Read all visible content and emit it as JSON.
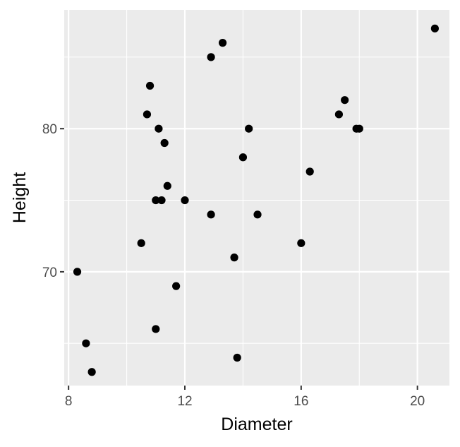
{
  "chart_data": {
    "type": "scatter",
    "xlabel": "Diameter",
    "ylabel": "Height",
    "xlim": [
      7.85,
      21.1
    ],
    "ylim": [
      62.05,
      88.3
    ],
    "x_ticks": [
      8,
      12,
      16,
      20
    ],
    "x_tick_labels": [
      "8",
      "12",
      "16",
      "20"
    ],
    "x_minor": [
      10,
      14,
      18
    ],
    "y_ticks": [
      70,
      80
    ],
    "y_tick_labels": [
      "70",
      "80"
    ],
    "y_minor": [
      65,
      75,
      85
    ],
    "grid": true,
    "background": "#ebebeb",
    "gridline_color": "#ffffff",
    "point_color": "#000000",
    "points": [
      {
        "x": 8.3,
        "y": 70
      },
      {
        "x": 8.6,
        "y": 65
      },
      {
        "x": 8.8,
        "y": 63
      },
      {
        "x": 10.5,
        "y": 72
      },
      {
        "x": 10.7,
        "y": 81
      },
      {
        "x": 10.8,
        "y": 83
      },
      {
        "x": 11.0,
        "y": 66
      },
      {
        "x": 11.0,
        "y": 75
      },
      {
        "x": 11.1,
        "y": 80
      },
      {
        "x": 11.2,
        "y": 75
      },
      {
        "x": 11.3,
        "y": 79
      },
      {
        "x": 11.4,
        "y": 76
      },
      {
        "x": 11.7,
        "y": 69
      },
      {
        "x": 12.0,
        "y": 75
      },
      {
        "x": 12.9,
        "y": 74
      },
      {
        "x": 12.9,
        "y": 85
      },
      {
        "x": 13.3,
        "y": 86
      },
      {
        "x": 13.7,
        "y": 71
      },
      {
        "x": 13.8,
        "y": 64
      },
      {
        "x": 14.0,
        "y": 78
      },
      {
        "x": 14.2,
        "y": 80
      },
      {
        "x": 14.5,
        "y": 74
      },
      {
        "x": 16.0,
        "y": 72
      },
      {
        "x": 16.3,
        "y": 77
      },
      {
        "x": 17.3,
        "y": 81
      },
      {
        "x": 17.5,
        "y": 82
      },
      {
        "x": 17.9,
        "y": 80
      },
      {
        "x": 18.0,
        "y": 80
      },
      {
        "x": 20.6,
        "y": 87
      }
    ]
  }
}
